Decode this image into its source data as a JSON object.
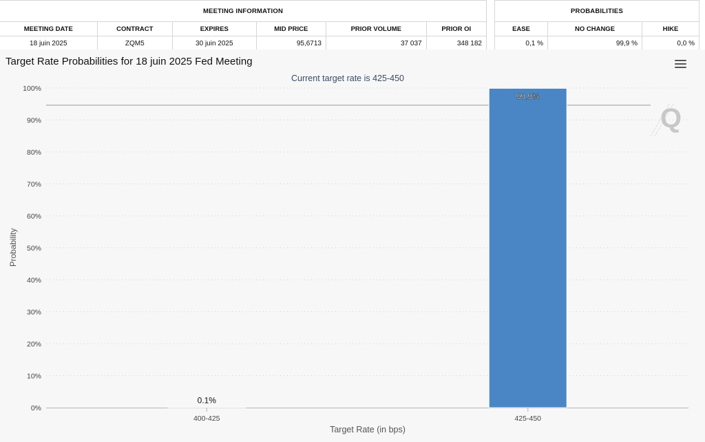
{
  "meeting_info": {
    "title": "MEETING INFORMATION",
    "headers": [
      "MEETING DATE",
      "CONTRACT",
      "EXPIRES",
      "MID PRICE",
      "PRIOR VOLUME",
      "PRIOR OI"
    ],
    "values": [
      "18 juin 2025",
      "ZQM5",
      "30 juin 2025",
      "95,6713",
      "37 037",
      "348 182"
    ]
  },
  "probabilities": {
    "title": "PROBABILITIES",
    "headers": [
      "EASE",
      "NO CHANGE",
      "HIKE"
    ],
    "values": [
      "0,1 %",
      "99,9 %",
      "0,0 %"
    ]
  },
  "menu_icon": "hamburger-menu-icon",
  "logo_icon": "q-watermark-logo",
  "colors": {
    "bar": "#4a86c5",
    "plot_bg": "#f7f7f7",
    "grid": "#cfcfcf"
  },
  "chart_data": {
    "type": "bar",
    "title": "Target Rate Probabilities for 18 juin 2025 Fed Meeting",
    "subtitle": "Current target rate is 425-450",
    "xlabel": "Target Rate (in bps)",
    "ylabel": "Probability",
    "categories": [
      "400-425",
      "425-450"
    ],
    "values": [
      0.1,
      99.9
    ],
    "data_labels": [
      "0.1%",
      "99.9%"
    ],
    "ylim": [
      0,
      100
    ],
    "yticks": [
      "0%",
      "10%",
      "20%",
      "30%",
      "40%",
      "50%",
      "60%",
      "70%",
      "80%",
      "90%",
      "100%"
    ],
    "grid": true,
    "legend": "none"
  }
}
